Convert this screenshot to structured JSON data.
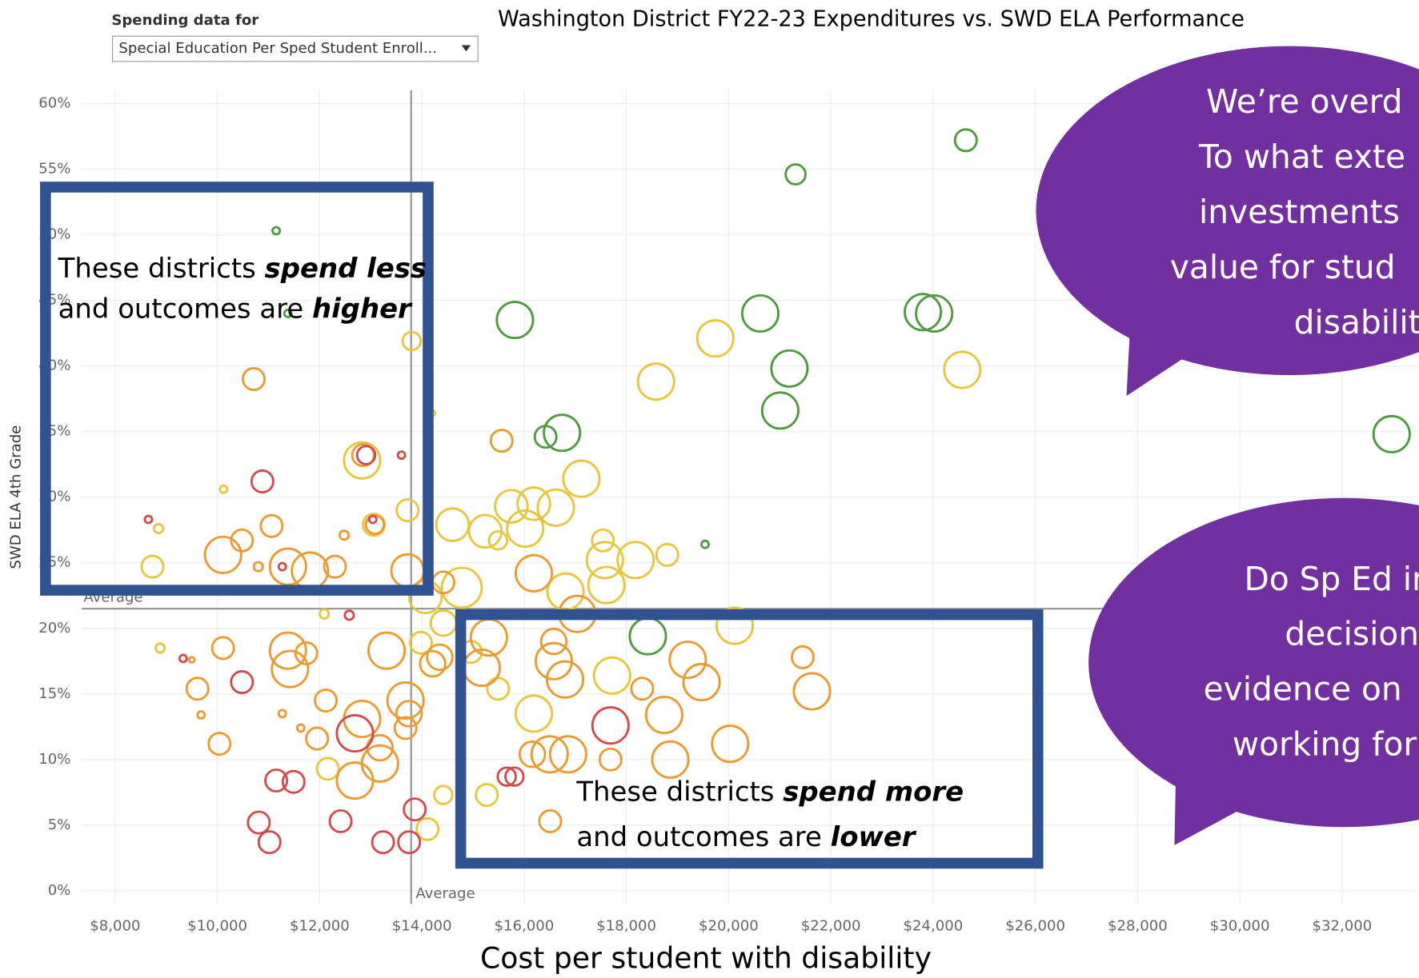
{
  "filter": {
    "label": "Spending data for",
    "value": "Special Education Per Sped Student Enroll..."
  },
  "chart_data": {
    "type": "scatter",
    "title": "Washington District FY22-23 Expenditures vs. SWD ELA Performance",
    "x_label": "Cost per student with disability",
    "y_label": "SWD ELA 4th Grade",
    "xlim": [
      7345,
      33500
    ],
    "ylim": [
      -1,
      61
    ],
    "xticks": [
      {
        "value": 8000,
        "label": "$8,000"
      },
      {
        "value": 10000,
        "label": "$10,000"
      },
      {
        "value": 12000,
        "label": "$12,000"
      },
      {
        "value": 14000,
        "label": "$14,000"
      },
      {
        "value": 16000,
        "label": "$16,000"
      },
      {
        "value": 18000,
        "label": "$18,000"
      },
      {
        "value": 20000,
        "label": "$20,000"
      },
      {
        "value": 22000,
        "label": "$22,000"
      },
      {
        "value": 24000,
        "label": "$24,000"
      },
      {
        "value": 26000,
        "label": "$26,000"
      },
      {
        "value": 28000,
        "label": "$28,000"
      },
      {
        "value": 30000,
        "label": "$30,000"
      },
      {
        "value": 32000,
        "label": "$32,000"
      }
    ],
    "yticks": [
      {
        "value": 0,
        "label": "0%"
      },
      {
        "value": 5,
        "label": "5%"
      },
      {
        "value": 10,
        "label": "10%"
      },
      {
        "value": 15,
        "label": "15%"
      },
      {
        "value": 20,
        "label": "20%"
      },
      {
        "value": 25,
        "label": "25%"
      },
      {
        "value": 30,
        "label": "30%"
      },
      {
        "value": 35,
        "label": "35%"
      },
      {
        "value": 40,
        "label": "40%"
      },
      {
        "value": 45,
        "label": "45%"
      },
      {
        "value": 50,
        "label": "50%"
      },
      {
        "value": 55,
        "label": "55%"
      },
      {
        "value": 60,
        "label": "60%"
      }
    ],
    "grid": true,
    "reference_lines": {
      "x": {
        "value": 13790,
        "label": "Average"
      },
      "y": {
        "value": 21.5,
        "label": "Average"
      }
    },
    "series": [
      {
        "color": "#4e9a3e",
        "x": [
          24640,
          21310,
          11150,
          11380,
          15820,
          20620,
          23800,
          24020,
          21190,
          21010,
          16740,
          16420,
          19540,
          18420,
          32970
        ],
        "values": [
          57.2,
          54.6,
          50.3,
          44.0,
          43.5,
          44.0,
          44.1,
          44.0,
          39.8,
          36.6,
          34.9,
          34.6,
          26.4,
          19.4,
          34.8
        ],
        "sizes": [
          12,
          11,
          4,
          4,
          20,
          20,
          20,
          20,
          20,
          20,
          20,
          12,
          4,
          20,
          20
        ]
      },
      {
        "color": "#e8c53a",
        "x": [
          13800,
          14210,
          19740,
          18580,
          24570,
          12830,
          17120,
          15750,
          16190,
          16620,
          16020,
          15240,
          14600,
          15490,
          13720,
          13060,
          17540,
          17580,
          18180,
          18800,
          17610,
          16810,
          14780,
          14070,
          14420,
          13980,
          20120,
          17720,
          16190,
          8730,
          8880,
          12090,
          10120,
          8850,
          12160,
          14420,
          15270,
          14110,
          15490,
          14960
        ],
        "values": [
          41.9,
          36.4,
          42.1,
          38.8,
          39.7,
          32.8,
          31.4,
          29.3,
          29.5,
          29.2,
          27.6,
          27.4,
          27.9,
          26.7,
          29.0,
          27.9,
          26.7,
          25.2,
          25.2,
          25.6,
          23.3,
          22.8,
          23.1,
          22.4,
          20.4,
          18.9,
          20.2,
          16.4,
          13.5,
          24.7,
          18.5,
          21.1,
          30.6,
          27.6,
          9.3,
          7.3,
          7.3,
          4.7,
          15.4,
          18.2
        ],
        "sizes": [
          10,
          3,
          20,
          20,
          20,
          20,
          20,
          18,
          18,
          20,
          20,
          18,
          18,
          10,
          12,
          12,
          12,
          20,
          20,
          12,
          20,
          20,
          22,
          18,
          14,
          12,
          20,
          20,
          20,
          12,
          5,
          5,
          4,
          5,
          12,
          10,
          12,
          12,
          12,
          12
        ]
      },
      {
        "color": "#ec9a2e",
        "x": [
          10710,
          12850,
          15560,
          13080,
          12480,
          13720,
          12300,
          10800,
          11380,
          11420,
          11740,
          13680,
          14210,
          14350,
          15310,
          15170,
          16580,
          16580,
          16800,
          17040,
          18310,
          19200,
          19470,
          18740,
          18860,
          20030,
          21450,
          21630,
          16190,
          16860,
          16500,
          16160,
          17690,
          16510,
          13310,
          12830,
          13180,
          13180,
          12690,
          12120,
          11950,
          10110,
          9610,
          10040,
          10110,
          10480,
          11060,
          11380,
          11810,
          13680,
          13750,
          9500,
          9680,
          14420,
          11270,
          11630
        ],
        "values": [
          39.0,
          33.2,
          34.3,
          27.9,
          27.1,
          24.4,
          24.7,
          24.7,
          18.3,
          16.9,
          18.1,
          14.5,
          17.3,
          17.8,
          19.3,
          17.0,
          19.0,
          17.5,
          16.1,
          21.1,
          15.4,
          17.6,
          15.9,
          13.4,
          10.0,
          11.2,
          17.8,
          15.2,
          24.2,
          10.4,
          10.4,
          10.4,
          10.0,
          5.3,
          18.3,
          13.1,
          10.9,
          9.7,
          8.4,
          14.5,
          11.6,
          18.5,
          15.4,
          11.2,
          25.6,
          26.7,
          27.8,
          24.7,
          24.4,
          12.4,
          13.5,
          17.6,
          13.4,
          23.5,
          13.5,
          12.4
        ],
        "sizes": [
          12,
          12,
          12,
          10,
          5,
          18,
          12,
          5,
          20,
          20,
          12,
          20,
          14,
          14,
          20,
          20,
          14,
          20,
          20,
          20,
          12,
          20,
          20,
          20,
          20,
          20,
          12,
          20,
          20,
          20,
          20,
          14,
          12,
          12,
          20,
          20,
          14,
          20,
          20,
          12,
          12,
          12,
          12,
          12,
          20,
          12,
          12,
          20,
          20,
          12,
          14,
          3,
          4,
          12,
          4,
          4
        ]
      },
      {
        "color": "#d44a4a",
        "x": [
          12910,
          13600,
          10880,
          13040,
          8650,
          9330,
          10480,
          12690,
          17690,
          15810,
          15660,
          11150,
          11490,
          10810,
          11020,
          12410,
          13240,
          13750,
          13860,
          12580,
          11270
        ],
        "values": [
          33.2,
          33.2,
          31.2,
          28.3,
          28.3,
          17.7,
          15.9,
          12.0,
          12.6,
          8.7,
          8.7,
          8.4,
          8.3,
          5.2,
          3.7,
          5.3,
          3.7,
          3.7,
          6.2,
          21.0,
          24.7
        ],
        "sizes": [
          10,
          4,
          12,
          4,
          4,
          4,
          12,
          20,
          20,
          10,
          10,
          12,
          12,
          12,
          12,
          12,
          12,
          12,
          12,
          5,
          4
        ]
      }
    ],
    "boxes": [
      {
        "lines": [
          [
            {
              "text": "These districts "
            },
            {
              "text": "spend less",
              "emphasis": true
            }
          ],
          [
            {
              "text": "and outcomes are "
            },
            {
              "text": "higher",
              "emphasis": true
            }
          ]
        ]
      },
      {
        "lines": [
          [
            {
              "text": "These districts "
            },
            {
              "text": "spend more",
              "emphasis": true
            }
          ],
          [
            {
              "text": "and outcomes are "
            },
            {
              "text": "lower",
              "emphasis": true
            }
          ]
        ]
      }
    ],
    "callouts": [
      {
        "lines": [
          "We’re overd",
          "To what exte",
          "investments",
          "value for stud",
          "disabilit"
        ]
      },
      {
        "lines": [
          "Do Sp Ed in",
          "decision",
          "evidence on",
          "working for"
        ]
      }
    ]
  }
}
